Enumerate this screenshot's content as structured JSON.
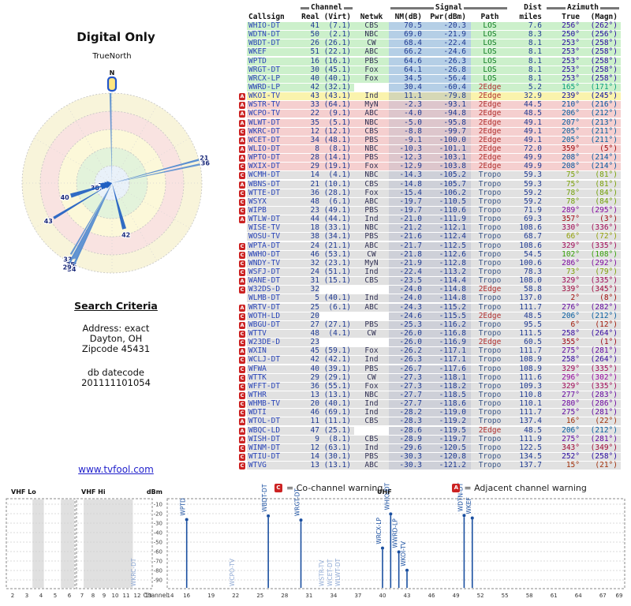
{
  "left_panel": {
    "title": "Digital Only",
    "compass_label": "TrueNorth",
    "north_marker": "N",
    "criteria_title": "Search Criteria",
    "criteria_lines": [
      "Address: exact",
      "Dayton, OH",
      "Zipcode 45431"
    ],
    "datecode_label": "db datecode",
    "datecode_value": "201111101054",
    "site_link": "www.tvfool.com"
  },
  "table": {
    "header": {
      "channel_group": "Channel",
      "signal_group": "Signal",
      "dist_group": "Dist",
      "azimuth_group": "Azimuth",
      "columns": [
        "Callsign",
        "Real",
        "(Virt)",
        "Netwk",
        "NM(dB)",
        "Pwr(dBm)",
        "Path",
        "miles",
        "True",
        "(Magn)"
      ]
    },
    "rows": [
      {
        "callsign": "WHIO-DT",
        "real": "41",
        "virt": "(7.1)",
        "netwk": "CBS",
        "nm": "70.5",
        "pwr": "-20.3",
        "path": "LOS",
        "miles": "7.6",
        "true": "256°",
        "magn": "(262°)",
        "band": "green",
        "flag": ""
      },
      {
        "callsign": "WDTN-DT",
        "real": "50",
        "virt": "(2.1)",
        "netwk": "NBC",
        "nm": "69.0",
        "pwr": "-21.9",
        "path": "LOS",
        "miles": "8.3",
        "true": "250°",
        "magn": "(256°)",
        "band": "green",
        "flag": ""
      },
      {
        "callsign": "WBDT-DT",
        "real": "26",
        "virt": "(26.1)",
        "netwk": "CW",
        "nm": "68.4",
        "pwr": "-22.4",
        "path": "LOS",
        "miles": "8.1",
        "true": "253°",
        "magn": "(258°)",
        "band": "green",
        "flag": ""
      },
      {
        "callsign": "WKEF",
        "real": "51",
        "virt": "(22.1)",
        "netwk": "ABC",
        "nm": "66.2",
        "pwr": "-24.6",
        "path": "LOS",
        "miles": "8.1",
        "true": "253°",
        "magn": "(258°)",
        "band": "green",
        "flag": ""
      },
      {
        "callsign": "WPTD",
        "real": "16",
        "virt": "(16.1)",
        "netwk": "PBS",
        "nm": "64.6",
        "pwr": "-26.3",
        "path": "LOS",
        "miles": "8.1",
        "true": "253°",
        "magn": "(258°)",
        "band": "green",
        "flag": ""
      },
      {
        "callsign": "WRGT-DT",
        "real": "30",
        "virt": "(45.1)",
        "netwk": "Fox",
        "nm": "64.1",
        "pwr": "-26.8",
        "path": "LOS",
        "miles": "8.1",
        "true": "253°",
        "magn": "(258°)",
        "band": "green",
        "flag": ""
      },
      {
        "callsign": "WRCX-LP",
        "real": "40",
        "virt": "(40.1)",
        "netwk": "Fox",
        "nm": "34.5",
        "pwr": "-56.4",
        "path": "LOS",
        "miles": "8.1",
        "true": "253°",
        "magn": "(258°)",
        "band": "green",
        "flag": ""
      },
      {
        "callsign": "WWRD-LP",
        "real": "42",
        "virt": "(32.1)",
        "netwk": "",
        "nm": "30.4",
        "pwr": "-60.4",
        "path": "2Edge",
        "miles": "5.2",
        "true": "165°",
        "magn": "(171°)",
        "band": "green",
        "flag": ""
      },
      {
        "callsign": "WKOI-TV",
        "real": "43",
        "virt": "(43.1)",
        "netwk": "Ind",
        "nm": "11.1",
        "pwr": "-79.8",
        "path": "2Edge",
        "miles": "32.9",
        "true": "239°",
        "magn": "(245°)",
        "band": "yellow",
        "flag": "A"
      },
      {
        "callsign": "WSTR-TV",
        "real": "33",
        "virt": "(64.1)",
        "netwk": "MyN",
        "nm": "-2.3",
        "pwr": "-93.1",
        "path": "2Edge",
        "miles": "44.5",
        "true": "210°",
        "magn": "(216°)",
        "band": "pink",
        "flag": "A"
      },
      {
        "callsign": "WCPO-TV",
        "real": "22",
        "virt": "(9.1)",
        "netwk": "ABC",
        "nm": "-4.0",
        "pwr": "-94.8",
        "path": "2Edge",
        "miles": "48.5",
        "true": "206°",
        "magn": "(212°)",
        "band": "pink",
        "flag": "A"
      },
      {
        "callsign": "WLWT-DT",
        "real": "35",
        "virt": "(5.1)",
        "netwk": "NBC",
        "nm": "-5.0",
        "pwr": "-95.8",
        "path": "2Edge",
        "miles": "49.1",
        "true": "207°",
        "magn": "(213°)",
        "band": "pink",
        "flag": "A"
      },
      {
        "callsign": "WKRC-DT",
        "real": "12",
        "virt": "(12.1)",
        "netwk": "CBS",
        "nm": "-8.8",
        "pwr": "-99.7",
        "path": "2Edge",
        "miles": "49.1",
        "true": "205°",
        "magn": "(211°)",
        "band": "pink",
        "flag": "C"
      },
      {
        "callsign": "WCET-DT",
        "real": "34",
        "virt": "(48.1)",
        "netwk": "PBS",
        "nm": "-9.1",
        "pwr": "-100.0",
        "path": "2Edge",
        "miles": "49.1",
        "true": "205°",
        "magn": "(211°)",
        "band": "pink",
        "flag": "A"
      },
      {
        "callsign": "WLIO-DT",
        "real": "8",
        "virt": "(8.1)",
        "netwk": "NBC",
        "nm": "-10.3",
        "pwr": "-101.1",
        "path": "2Edge",
        "miles": "72.0",
        "true": "359°",
        "magn": "(5°)",
        "band": "pink",
        "flag": "A"
      },
      {
        "callsign": "WPTO-DT",
        "real": "28",
        "virt": "(14.1)",
        "netwk": "PBS",
        "nm": "-12.3",
        "pwr": "-103.1",
        "path": "2Edge",
        "miles": "49.9",
        "true": "208°",
        "magn": "(214°)",
        "band": "pink",
        "flag": "A"
      },
      {
        "callsign": "WXIX-DT",
        "real": "29",
        "virt": "(19.1)",
        "netwk": "Fox",
        "nm": "-12.9",
        "pwr": "-103.8",
        "path": "2Edge",
        "miles": "49.9",
        "true": "208°",
        "magn": "(214°)",
        "band": "pink",
        "flag": "C"
      },
      {
        "callsign": "WCMH-DT",
        "real": "14",
        "virt": "(4.1)",
        "netwk": "NBC",
        "nm": "-14.3",
        "pwr": "-105.2",
        "path": "Tropo",
        "miles": "59.3",
        "true": "75°",
        "magn": "(81°)",
        "band": "gray",
        "flag": "C"
      },
      {
        "callsign": "WBNS-DT",
        "real": "21",
        "virt": "(10.1)",
        "netwk": "CBS",
        "nm": "-14.8",
        "pwr": "-105.7",
        "path": "Tropo",
        "miles": "59.3",
        "true": "75°",
        "magn": "(81°)",
        "band": "gray",
        "flag": "A"
      },
      {
        "callsign": "WTTE-DT",
        "real": "36",
        "virt": "(28.1)",
        "netwk": "Fox",
        "nm": "-15.4",
        "pwr": "-106.2",
        "path": "Tropo",
        "miles": "59.2",
        "true": "78°",
        "magn": "(84°)",
        "band": "gray",
        "flag": "C"
      },
      {
        "callsign": "WSYX",
        "real": "48",
        "virt": "(6.1)",
        "netwk": "ABC",
        "nm": "-19.7",
        "pwr": "-110.5",
        "path": "Tropo",
        "miles": "59.2",
        "true": "78°",
        "magn": "(84°)",
        "band": "gray",
        "flag": "C"
      },
      {
        "callsign": "WIPB",
        "real": "23",
        "virt": "(49.1)",
        "netwk": "PBS",
        "nm": "-19.7",
        "pwr": "-110.6",
        "path": "Tropo",
        "miles": "71.9",
        "true": "289°",
        "magn": "(295°)",
        "band": "gray",
        "flag": "C"
      },
      {
        "callsign": "WTLW-DT",
        "real": "44",
        "virt": "(44.1)",
        "netwk": "Ind",
        "nm": "-21.0",
        "pwr": "-111.9",
        "path": "Tropo",
        "miles": "69.3",
        "true": "357°",
        "magn": "(3°)",
        "band": "gray",
        "flag": "A"
      },
      {
        "callsign": "WISE-TV",
        "real": "18",
        "virt": "(33.1)",
        "netwk": "NBC",
        "nm": "-21.2",
        "pwr": "-112.1",
        "path": "Tropo",
        "miles": "108.6",
        "true": "330°",
        "magn": "(336°)",
        "band": "gray",
        "flag": ""
      },
      {
        "callsign": "WOSU-TV",
        "real": "38",
        "virt": "(34.1)",
        "netwk": "PBS",
        "nm": "-21.6",
        "pwr": "-112.4",
        "path": "Tropo",
        "miles": "68.7",
        "true": "66°",
        "magn": "(72°)",
        "band": "gray",
        "flag": ""
      },
      {
        "callsign": "WPTA-DT",
        "real": "24",
        "virt": "(21.1)",
        "netwk": "ABC",
        "nm": "-21.7",
        "pwr": "-112.5",
        "path": "Tropo",
        "miles": "108.6",
        "true": "329°",
        "magn": "(335°)",
        "band": "gray",
        "flag": "C"
      },
      {
        "callsign": "WWHO-DT",
        "real": "46",
        "virt": "(53.1)",
        "netwk": "CW",
        "nm": "-21.8",
        "pwr": "-112.6",
        "path": "Tropo",
        "miles": "54.5",
        "true": "102°",
        "magn": "(108°)",
        "band": "gray",
        "flag": "C"
      },
      {
        "callsign": "WNDY-TV",
        "real": "32",
        "virt": "(23.1)",
        "netwk": "MyN",
        "nm": "-21.9",
        "pwr": "-112.8",
        "path": "Tropo",
        "miles": "100.6",
        "true": "286°",
        "magn": "(292°)",
        "band": "gray",
        "flag": "C"
      },
      {
        "callsign": "WSFJ-DT",
        "real": "24",
        "virt": "(51.1)",
        "netwk": "Ind",
        "nm": "-22.4",
        "pwr": "-113.2",
        "path": "Tropo",
        "miles": "78.3",
        "true": "73°",
        "magn": "(79°)",
        "band": "gray",
        "flag": "C"
      },
      {
        "callsign": "WANE-DT",
        "real": "31",
        "virt": "(15.1)",
        "netwk": "CBS",
        "nm": "-23.5",
        "pwr": "-114.4",
        "path": "Tropo",
        "miles": "108.0",
        "true": "329°",
        "magn": "(335°)",
        "band": "gray",
        "flag": "A"
      },
      {
        "callsign": "W32DS-D",
        "real": "32",
        "virt": "",
        "netwk": "",
        "nm": "-24.0",
        "pwr": "-114.8",
        "path": "2Edge",
        "miles": "58.8",
        "true": "339°",
        "magn": "(345°)",
        "band": "gray",
        "flag": "C"
      },
      {
        "callsign": "WLMB-DT",
        "real": "5",
        "virt": "(40.1)",
        "netwk": "Ind",
        "nm": "-24.0",
        "pwr": "-114.8",
        "path": "Tropo",
        "miles": "137.0",
        "true": "2°",
        "magn": "(8°)",
        "band": "gray",
        "flag": ""
      },
      {
        "callsign": "WRTV-DT",
        "real": "25",
        "virt": "(6.1)",
        "netwk": "ABC",
        "nm": "-24.3",
        "pwr": "-115.2",
        "path": "Tropo",
        "miles": "111.7",
        "true": "276°",
        "magn": "(282°)",
        "band": "gray",
        "flag": "A"
      },
      {
        "callsign": "WOTH-LD",
        "real": "20",
        "virt": "",
        "netwk": "",
        "nm": "-24.6",
        "pwr": "-115.5",
        "path": "2Edge",
        "miles": "48.5",
        "true": "206°",
        "magn": "(212°)",
        "band": "gray",
        "flag": "C"
      },
      {
        "callsign": "WBGU-DT",
        "real": "27",
        "virt": "(27.1)",
        "netwk": "PBS",
        "nm": "-25.3",
        "pwr": "-116.2",
        "path": "Tropo",
        "miles": "95.5",
        "true": "6°",
        "magn": "(12°)",
        "band": "gray",
        "flag": "A"
      },
      {
        "callsign": "WTTV",
        "real": "48",
        "virt": "(4.1)",
        "netwk": "CW",
        "nm": "-26.0",
        "pwr": "-116.8",
        "path": "Tropo",
        "miles": "111.5",
        "true": "258°",
        "magn": "(264°)",
        "band": "gray",
        "flag": "C"
      },
      {
        "callsign": "W23DE-D",
        "real": "23",
        "virt": "",
        "netwk": "",
        "nm": "-26.0",
        "pwr": "-116.9",
        "path": "2Edge",
        "miles": "60.5",
        "true": "355°",
        "magn": "(1°)",
        "band": "gray",
        "flag": "C"
      },
      {
        "callsign": "WXIN",
        "real": "45",
        "virt": "(59.1)",
        "netwk": "Fox",
        "nm": "-26.2",
        "pwr": "-117.1",
        "path": "Tropo",
        "miles": "111.7",
        "true": "275°",
        "magn": "(281°)",
        "band": "gray",
        "flag": "A"
      },
      {
        "callsign": "WCLJ-DT",
        "real": "42",
        "virt": "(42.1)",
        "netwk": "Ind",
        "nm": "-26.3",
        "pwr": "-117.1",
        "path": "Tropo",
        "miles": "108.9",
        "true": "258°",
        "magn": "(264°)",
        "band": "gray",
        "flag": "C"
      },
      {
        "callsign": "WFWA",
        "real": "40",
        "virt": "(39.1)",
        "netwk": "PBS",
        "nm": "-26.7",
        "pwr": "-117.6",
        "path": "Tropo",
        "miles": "108.9",
        "true": "329°",
        "magn": "(335°)",
        "band": "gray",
        "flag": "C"
      },
      {
        "callsign": "WTTK",
        "real": "29",
        "virt": "(29.1)",
        "netwk": "CW",
        "nm": "-27.3",
        "pwr": "-118.1",
        "path": "Tropo",
        "miles": "111.6",
        "true": "296°",
        "magn": "(302°)",
        "band": "gray",
        "flag": "C"
      },
      {
        "callsign": "WFFT-DT",
        "real": "36",
        "virt": "(55.1)",
        "netwk": "Fox",
        "nm": "-27.3",
        "pwr": "-118.2",
        "path": "Tropo",
        "miles": "109.3",
        "true": "329°",
        "magn": "(335°)",
        "band": "gray",
        "flag": "C"
      },
      {
        "callsign": "WTHR",
        "real": "13",
        "virt": "(13.1)",
        "netwk": "NBC",
        "nm": "-27.7",
        "pwr": "-118.5",
        "path": "Tropo",
        "miles": "110.8",
        "true": "277°",
        "magn": "(283°)",
        "band": "gray",
        "flag": "C"
      },
      {
        "callsign": "WHMB-TV",
        "real": "20",
        "virt": "(40.1)",
        "netwk": "Ind",
        "nm": "-27.7",
        "pwr": "-118.6",
        "path": "Tropo",
        "miles": "110.1",
        "true": "280°",
        "magn": "(286°)",
        "band": "gray",
        "flag": "C"
      },
      {
        "callsign": "WDTI",
        "real": "46",
        "virt": "(69.1)",
        "netwk": "Ind",
        "nm": "-28.2",
        "pwr": "-119.0",
        "path": "Tropo",
        "miles": "111.7",
        "true": "275°",
        "magn": "(281°)",
        "band": "gray",
        "flag": "C"
      },
      {
        "callsign": "WTOL-DT",
        "real": "11",
        "virt": "(11.1)",
        "netwk": "CBS",
        "nm": "-28.3",
        "pwr": "-119.2",
        "path": "Tropo",
        "miles": "137.4",
        "true": "16°",
        "magn": "(22°)",
        "band": "gray",
        "flag": "A"
      },
      {
        "callsign": "WBQC-LD",
        "real": "47",
        "virt": "(25.1)",
        "netwk": "",
        "nm": "-28.6",
        "pwr": "-119.5",
        "path": "2Edge",
        "miles": "48.5",
        "true": "206°",
        "magn": "(212°)",
        "band": "gray",
        "flag": "A"
      },
      {
        "callsign": "WISH-DT",
        "real": "9",
        "virt": "(8.1)",
        "netwk": "CBS",
        "nm": "-28.9",
        "pwr": "-119.7",
        "path": "Tropo",
        "miles": "111.9",
        "true": "275°",
        "magn": "(281°)",
        "band": "gray",
        "flag": "A"
      },
      {
        "callsign": "WINM-DT",
        "real": "12",
        "virt": "(63.1)",
        "netwk": "Ind",
        "nm": "-29.6",
        "pwr": "-120.5",
        "path": "Tropo",
        "miles": "122.5",
        "true": "343°",
        "magn": "(349°)",
        "band": "gray",
        "flag": "C"
      },
      {
        "callsign": "WTIU-DT",
        "real": "14",
        "virt": "(30.1)",
        "netwk": "PBS",
        "nm": "-30.3",
        "pwr": "-120.8",
        "path": "Tropo",
        "miles": "134.5",
        "true": "252°",
        "magn": "(258°)",
        "band": "gray",
        "flag": "C"
      },
      {
        "callsign": "WTVG",
        "real": "13",
        "virt": "(13.1)",
        "netwk": "ABC",
        "nm": "-30.3",
        "pwr": "-121.2",
        "path": "Tropo",
        "miles": "137.7",
        "true": "15°",
        "magn": "(21°)",
        "band": "gray",
        "flag": "C"
      }
    ]
  },
  "legend": {
    "co_letter": "C",
    "co_text": "= Co-channel warning",
    "adj_letter": "A",
    "adj_text": "= Adjacent channel warning"
  },
  "spectrum": {
    "ylabel": "dBm",
    "channel_label": "Channel",
    "band_labels": {
      "vhf_lo": "VHF Lo",
      "vhf_hi": "VHF Hi",
      "uhf": "UHF"
    },
    "y_ticks": [
      -10,
      -20,
      -30,
      -40,
      -50,
      -60,
      -70,
      -80,
      -90
    ],
    "vhf_lo_ticks": [
      2,
      3,
      4,
      5,
      6
    ],
    "vhf_hi_ticks": [
      7,
      8,
      9,
      10,
      11,
      12,
      13
    ],
    "uhf_ticks": [
      14,
      16,
      19,
      22,
      25,
      28,
      31,
      34,
      37,
      40,
      43,
      46,
      49,
      52,
      55,
      58,
      61,
      64,
      67,
      69
    ],
    "shaded_channel_bands": [
      {
        "from": 3.4,
        "to": 4.2
      },
      {
        "from": 5.4,
        "to": 6.8
      },
      {
        "from": 7.15,
        "to": 11.6
      }
    ]
  },
  "colors": {
    "row_green": "#ccf0cb",
    "row_yellow": "#faf3ad",
    "row_pink": "#f5cfcf",
    "row_gray": "#e1e1e1",
    "sig_green": "#b5cfe6",
    "sig_yellow": "#d6d8b6",
    "sig_pink": "#ddc6cc",
    "sig_gray": "#ced0d8",
    "path_los": "#0a7a1e",
    "path_2edge": "#b03030",
    "path_tropo": "#3f5a8a",
    "callsign_blue": "#2b46b8",
    "value_blue": "#1f3a93",
    "flag_red": "#cc2222",
    "marker_blue": "#1a4fa0",
    "marker_weak": "#8fa9d4",
    "wedge_blue": "#1f5fc2"
  }
}
